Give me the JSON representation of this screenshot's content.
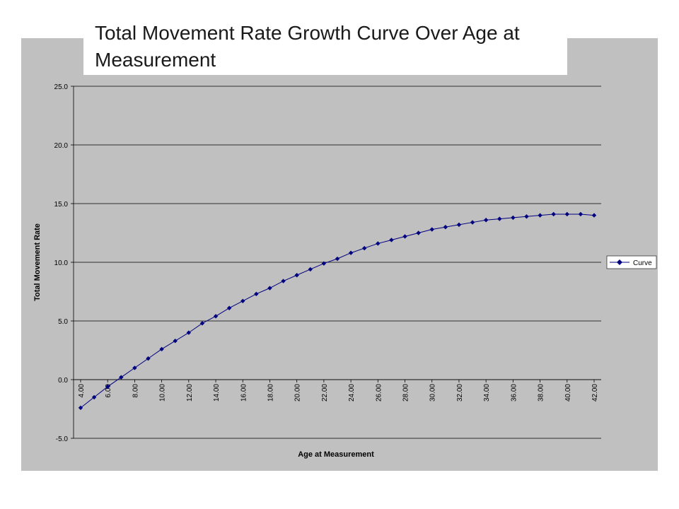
{
  "chart_data": {
    "type": "line",
    "title": "Total Movement Rate Growth Curve Over Age at Measurement",
    "xlabel": "Age at Measurement",
    "ylabel": "Total Movement Rate",
    "xlim": [
      4,
      42
    ],
    "ylim": [
      -5,
      25
    ],
    "y_ticks": [
      "-5.0",
      "0.0",
      "5.0",
      "10.0",
      "15.0",
      "20.0",
      "25.0"
    ],
    "x_ticks": [
      "4.00",
      "6.00",
      "8.00",
      "10.00",
      "12.00",
      "14.00",
      "16.00",
      "18.00",
      "20.00",
      "22.00",
      "24.00",
      "26.00",
      "28.00",
      "30.00",
      "32.00",
      "34.00",
      "36.00",
      "38.00",
      "40.00",
      "42.00"
    ],
    "grid": "horizontal",
    "legend_position": "right",
    "background_color": "#c0c0c0",
    "series": [
      {
        "name": "Curve",
        "color": "#000080",
        "marker": "diamond",
        "x": [
          4,
          5,
          6,
          7,
          8,
          9,
          10,
          11,
          12,
          13,
          14,
          15,
          16,
          17,
          18,
          19,
          20,
          21,
          22,
          23,
          24,
          25,
          26,
          27,
          28,
          29,
          30,
          31,
          32,
          33,
          34,
          35,
          36,
          37,
          38,
          39,
          40,
          41,
          42
        ],
        "y": [
          -2.4,
          -1.5,
          -0.6,
          0.2,
          1.0,
          1.8,
          2.6,
          3.3,
          4.0,
          4.8,
          5.4,
          6.1,
          6.7,
          7.3,
          7.8,
          8.4,
          8.9,
          9.4,
          9.9,
          10.3,
          10.8,
          11.2,
          11.6,
          11.9,
          12.2,
          12.5,
          12.8,
          13.0,
          13.2,
          13.4,
          13.6,
          13.7,
          13.8,
          13.9,
          14.0,
          14.1,
          14.1,
          14.1,
          14.0
        ]
      }
    ]
  }
}
